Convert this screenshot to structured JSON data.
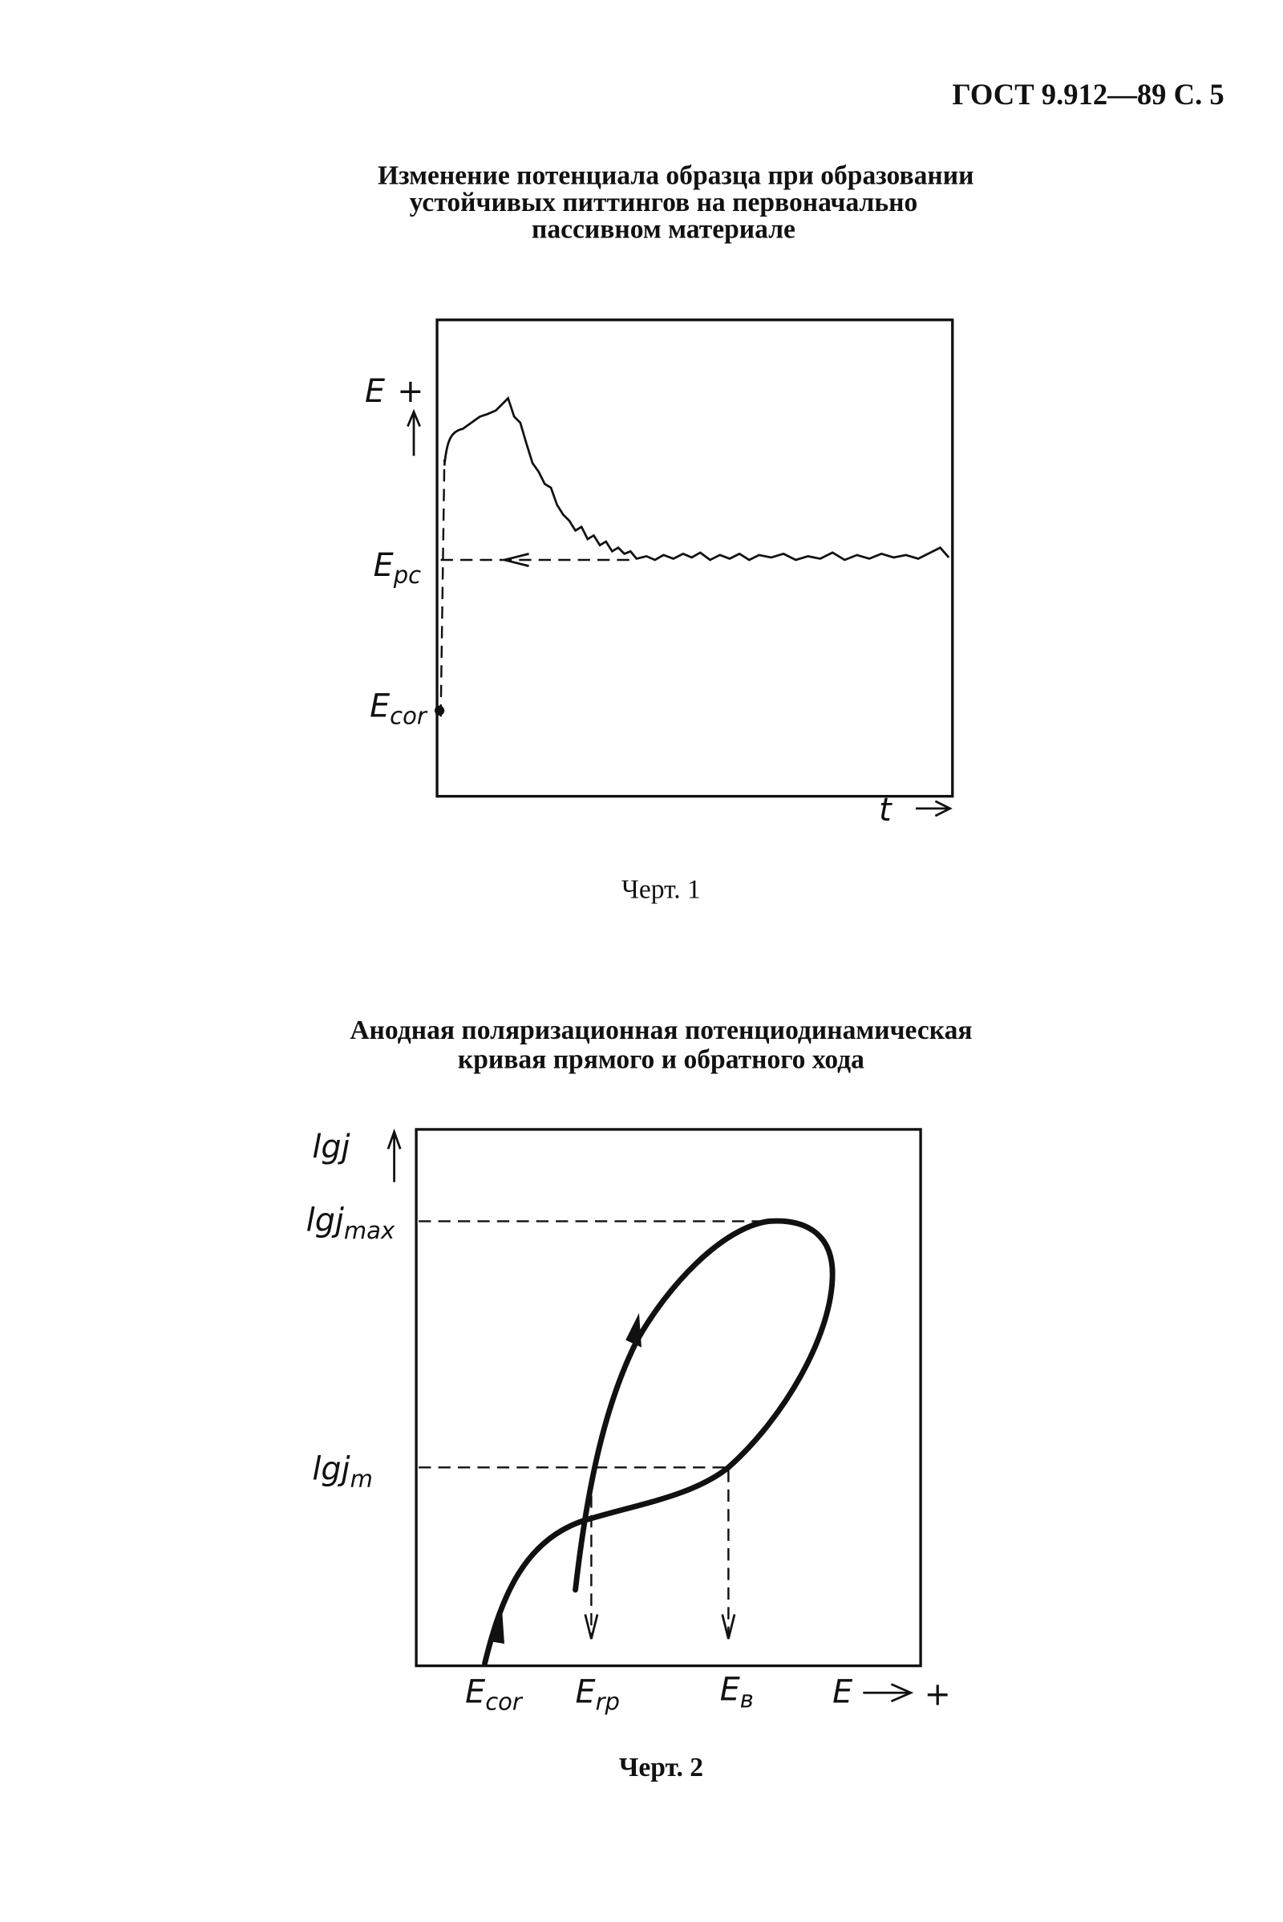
{
  "header": "ГОСТ 9.912—89 С. 5",
  "figure1": {
    "title_lines": [
      "Изменение потенциала образца при образовании",
      "устойчивых питтингов на первоначально",
      "пассивном материале"
    ],
    "labels": {
      "e_plus": {
        "main": "E",
        "sign": "+"
      },
      "e_pc": {
        "main": "E",
        "sub": "pc"
      },
      "e_cor": {
        "main": "E",
        "sub": "cor"
      },
      "t": "t"
    },
    "caption": "Черт. 1"
  },
  "figure2": {
    "title_lines": [
      "Анодная поляризационная потенциодинамическая",
      "кривая прямого и обратного хода"
    ],
    "labels": {
      "lgj": "lgj",
      "lgj_max": {
        "main": "lgj",
        "sub": "max"
      },
      "lgj_m": {
        "main": "lgj",
        "sub": "m"
      },
      "e_cor": {
        "main": "E",
        "sub": "cor"
      },
      "e_rp": {
        "main": "E",
        "sub": "rp"
      },
      "e_b": {
        "main": "E",
        "sub": "в"
      },
      "e_axis": {
        "main": "E",
        "sign": "+"
      }
    },
    "caption": "Черт. 2"
  }
}
